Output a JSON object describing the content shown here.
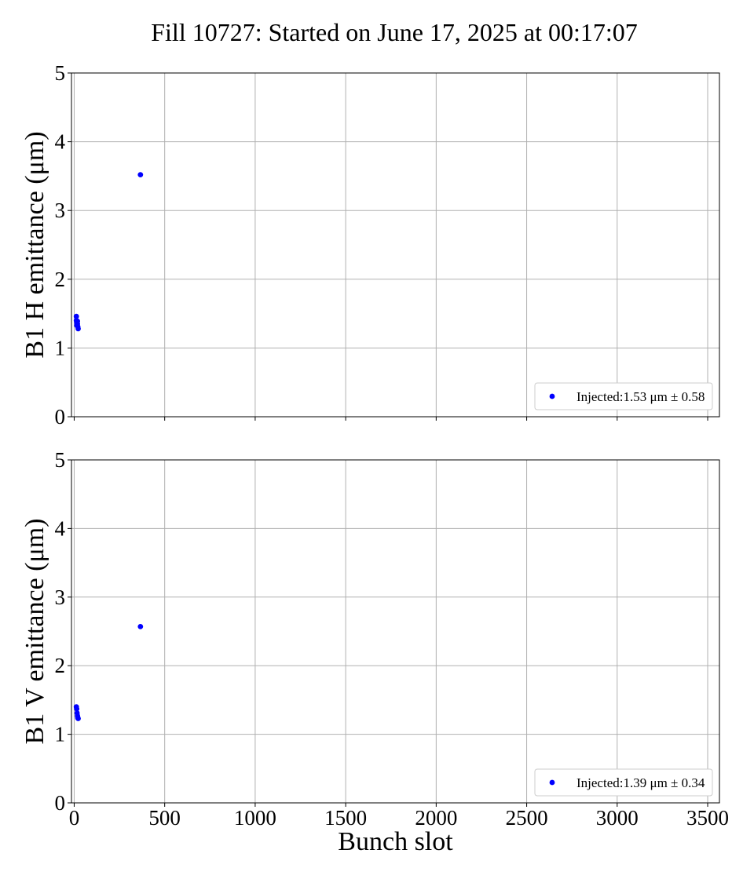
{
  "title": "Fill 10727: Started on June 17, 2025 at 00:17:07",
  "chart_data": [
    {
      "type": "scatter",
      "ylabel": "B1 H emittance (μm)",
      "xlabel": "",
      "xlim": [
        -15,
        3565
      ],
      "ylim": [
        0,
        5
      ],
      "xticks": [
        0,
        500,
        1000,
        1500,
        2000,
        2500,
        3000,
        3500
      ],
      "yticks": [
        0,
        1,
        2,
        3,
        4,
        5
      ],
      "xtick_labels_visible": false,
      "grid": true,
      "legend_position": "lower-right",
      "series": [
        {
          "name": "Injected:1.53 μm ± 0.58",
          "color": "#0000ff",
          "points": [
            {
              "x": 12,
              "y": 1.46
            },
            {
              "x": 12,
              "y": 1.4
            },
            {
              "x": 14,
              "y": 1.37
            },
            {
              "x": 14,
              "y": 1.33
            },
            {
              "x": 18,
              "y": 1.39
            },
            {
              "x": 18,
              "y": 1.35
            },
            {
              "x": 20,
              "y": 1.31
            },
            {
              "x": 22,
              "y": 1.28
            },
            {
              "x": 366,
              "y": 3.52
            }
          ]
        }
      ]
    },
    {
      "type": "scatter",
      "ylabel": "B1 V emittance (μm)",
      "xlabel": "Bunch slot",
      "xlim": [
        -15,
        3565
      ],
      "ylim": [
        0,
        5
      ],
      "xticks": [
        0,
        500,
        1000,
        1500,
        2000,
        2500,
        3000,
        3500
      ],
      "yticks": [
        0,
        1,
        2,
        3,
        4,
        5
      ],
      "xtick_labels_visible": true,
      "grid": true,
      "legend_position": "lower-right",
      "series": [
        {
          "name": "Injected:1.39 μm ± 0.34",
          "color": "#0000ff",
          "points": [
            {
              "x": 12,
              "y": 1.4
            },
            {
              "x": 14,
              "y": 1.37
            },
            {
              "x": 16,
              "y": 1.31
            },
            {
              "x": 18,
              "y": 1.27
            },
            {
              "x": 20,
              "y": 1.24
            },
            {
              "x": 22,
              "y": 1.23
            },
            {
              "x": 366,
              "y": 2.57
            }
          ]
        }
      ]
    }
  ]
}
